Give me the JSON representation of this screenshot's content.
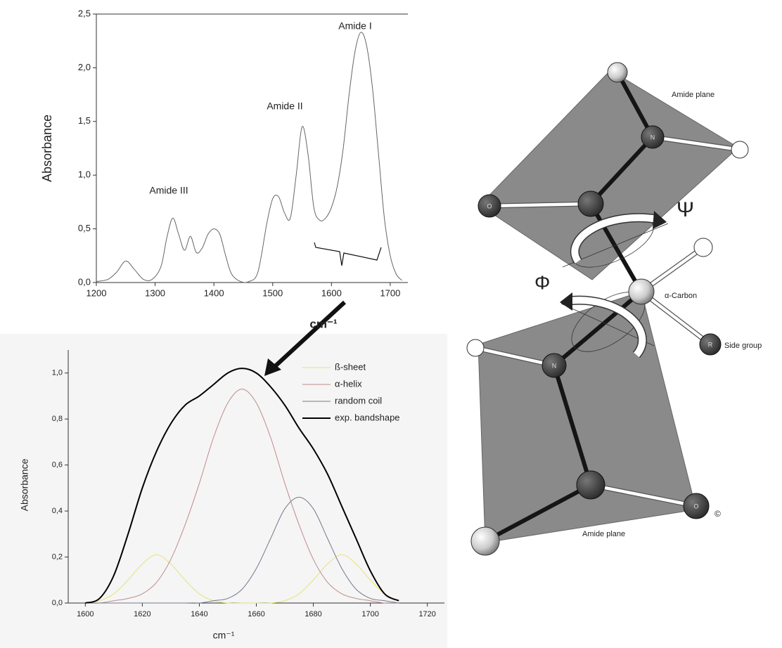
{
  "chart_data": [
    {
      "type": "line",
      "y_label": "Absorbance",
      "x_label": "cm⁻¹",
      "annotations": [
        "Amide I",
        "Amide II",
        "Amide III"
      ],
      "x": [
        1200,
        1220,
        1235,
        1250,
        1265,
        1280,
        1295,
        1310,
        1320,
        1330,
        1340,
        1350,
        1360,
        1370,
        1380,
        1390,
        1400,
        1410,
        1420,
        1430,
        1445,
        1460,
        1475,
        1490,
        1500,
        1510,
        1520,
        1530,
        1540,
        1550,
        1560,
        1570,
        1580,
        1590,
        1600,
        1610,
        1620,
        1630,
        1640,
        1650,
        1660,
        1670,
        1680,
        1690,
        1700,
        1710,
        1720
      ],
      "series": [
        {
          "color": "#666666",
          "values": [
            0.01,
            0.03,
            0.1,
            0.2,
            0.12,
            0.03,
            0.03,
            0.15,
            0.42,
            0.6,
            0.45,
            0.3,
            0.43,
            0.28,
            0.32,
            0.45,
            0.5,
            0.45,
            0.25,
            0.08,
            0.01,
            0.01,
            0.1,
            0.55,
            0.78,
            0.8,
            0.65,
            0.6,
            1.0,
            1.45,
            1.2,
            0.7,
            0.58,
            0.6,
            0.7,
            0.9,
            1.25,
            1.75,
            2.15,
            2.33,
            2.2,
            1.8,
            1.2,
            0.6,
            0.25,
            0.08,
            0.02
          ]
        }
      ],
      "xlim": [
        1200,
        1730
      ],
      "xticks": [
        1200,
        1300,
        1400,
        1500,
        1600,
        1700
      ],
      "ylim": [
        0,
        2.5
      ],
      "yticks": [
        {
          "value": 0,
          "label": "0,0"
        },
        {
          "value": 0.5,
          "label": "0,5"
        },
        {
          "value": 1,
          "label": "1,0"
        },
        {
          "value": 1.5,
          "label": "1,5"
        },
        {
          "value": 2,
          "label": "2,0"
        },
        {
          "value": 2.5,
          "label": "2,5"
        }
      ]
    },
    {
      "type": "line",
      "y_label": "Absorbance",
      "x_label": "cm⁻¹",
      "legend": "upper right",
      "x": [
        1600,
        1605,
        1610,
        1615,
        1620,
        1625,
        1630,
        1635,
        1640,
        1645,
        1650,
        1655,
        1660,
        1665,
        1670,
        1675,
        1680,
        1685,
        1690,
        1695,
        1700,
        1705,
        1710
      ],
      "series": [
        {
          "name": "ß-sheet",
          "color": "#e4e478",
          "values": [
            0,
            0.01,
            0.04,
            0.1,
            0.17,
            0.21,
            0.17,
            0.1,
            0.04,
            0.01,
            0,
            0,
            0,
            0,
            0.01,
            0.04,
            0.1,
            0.17,
            0.21,
            0.17,
            0.1,
            0.04,
            0.01
          ]
        },
        {
          "name": "α-helix",
          "color": "#c08a8a",
          "values": [
            0,
            0,
            0.01,
            0.02,
            0.04,
            0.09,
            0.19,
            0.34,
            0.52,
            0.72,
            0.87,
            0.93,
            0.87,
            0.72,
            0.52,
            0.34,
            0.19,
            0.09,
            0.04,
            0.02,
            0.01,
            0,
            0
          ]
        },
        {
          "name": "random coil",
          "color": "#76768e",
          "values": [
            0,
            0,
            0,
            0,
            0,
            0,
            0,
            0,
            0,
            0.01,
            0.02,
            0.06,
            0.15,
            0.28,
            0.41,
            0.46,
            0.41,
            0.28,
            0.15,
            0.06,
            0.02,
            0.01,
            0
          ]
        },
        {
          "name": "exp. bandshape",
          "color": "#000000",
          "values": [
            0,
            0.02,
            0.12,
            0.3,
            0.5,
            0.66,
            0.78,
            0.86,
            0.9,
            0.95,
            1.0,
            1.02,
            1.0,
            0.94,
            0.86,
            0.76,
            0.67,
            0.56,
            0.42,
            0.28,
            0.14,
            0.04,
            0.01
          ]
        }
      ],
      "xlim": [
        1594,
        1726
      ],
      "xticks": [
        1600,
        1620,
        1640,
        1660,
        1680,
        1700,
        1720
      ],
      "ylim": [
        0,
        1.1
      ],
      "yticks": [
        {
          "value": 0,
          "label": "0,0"
        },
        {
          "value": 0.2,
          "label": "0,2"
        },
        {
          "value": 0.4,
          "label": "0,4"
        },
        {
          "value": 0.6,
          "label": "0,6"
        },
        {
          "value": 0.8,
          "label": "0,8"
        },
        {
          "value": 1,
          "label": "1,0"
        }
      ]
    }
  ],
  "diagram": {
    "labels": [
      "Amide plane",
      "Ψ",
      "α-Carbon",
      "Φ",
      "Side group",
      "Amide plane",
      "©"
    ],
    "atoms": [
      "O",
      "N",
      "R",
      "N",
      "O"
    ]
  }
}
